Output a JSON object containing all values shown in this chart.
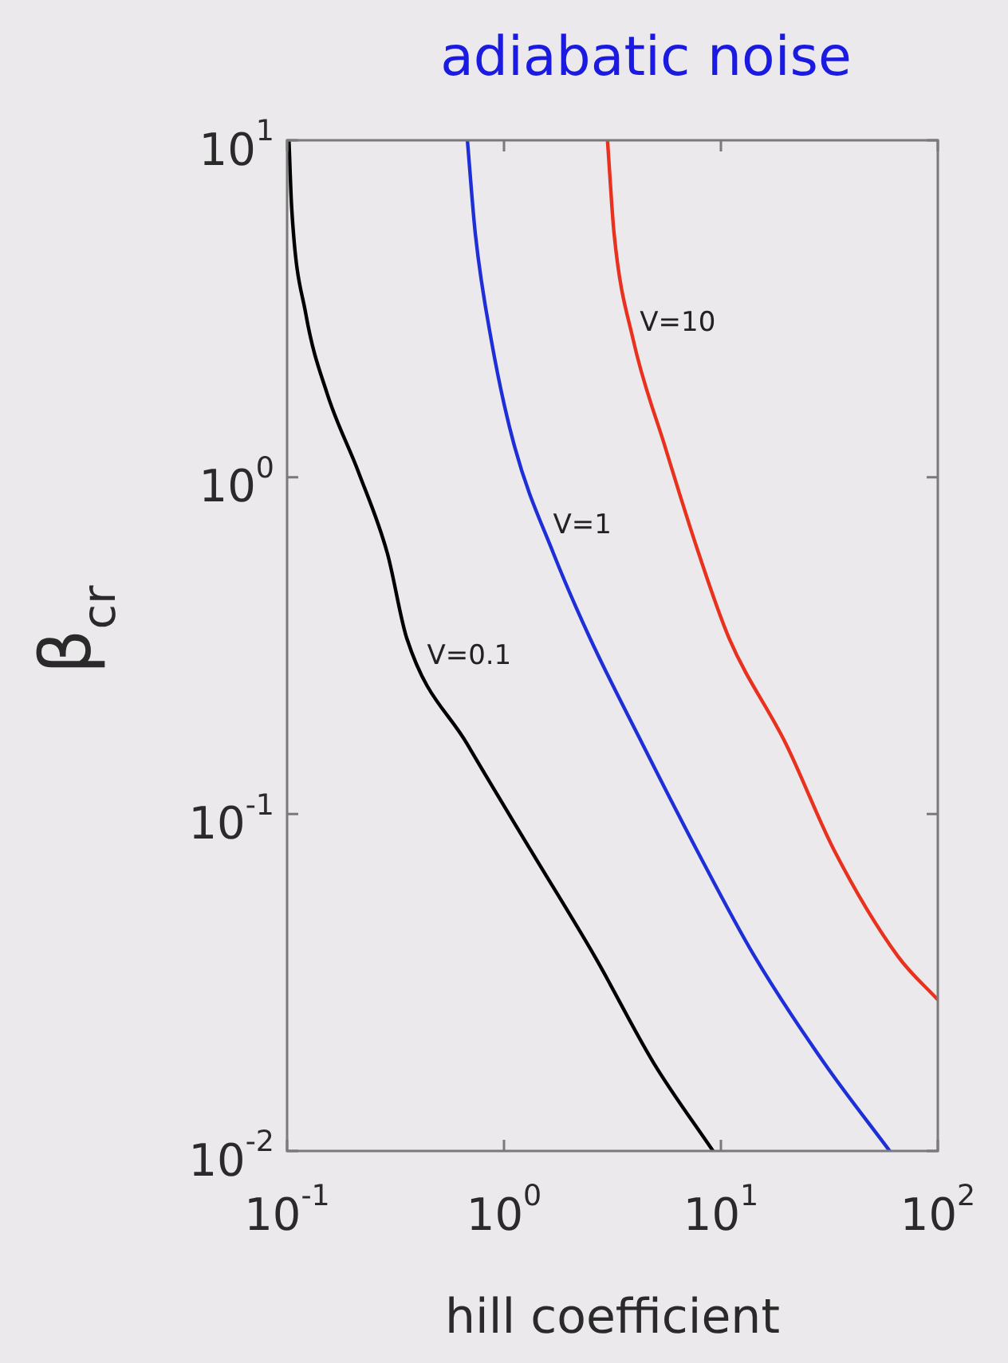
{
  "chart_data": {
    "type": "line",
    "title": "adiabatic noise",
    "xlabel": "hill coefficient",
    "ylabel": "β$_{cr}$",
    "log": "xy",
    "xlim": [
      0.1,
      100
    ],
    "ylim": [
      0.01,
      10
    ],
    "xticks": [
      {
        "value": 0.1,
        "label": "10$^{-1}$"
      },
      {
        "value": 1,
        "label": "10$^{0}$"
      },
      {
        "value": 10,
        "label": "10$^{1}$"
      },
      {
        "value": 100,
        "label": "10$^{2}$"
      }
    ],
    "yticks": [
      {
        "value": 0.01,
        "label": "10$^{-2}$"
      },
      {
        "value": 0.1,
        "label": "10$^{-1}$"
      },
      {
        "value": 1,
        "label": "10$^{0}$"
      },
      {
        "value": 10,
        "label": "10$^{1}$"
      }
    ],
    "grid": false,
    "legend": false,
    "marker": "none",
    "line_style": "solid",
    "series": [
      {
        "name": "V=0.1",
        "color": "#000000",
        "x": [
          0.102,
          0.105,
          0.122,
          0.153,
          0.214,
          0.29,
          0.356,
          0.678,
          1.33,
          2.62,
          4.91,
          9.2
        ],
        "values": [
          10,
          6.3,
          3.05,
          1.77,
          1.03,
          0.594,
          0.333,
          0.161,
          0.078,
          0.0378,
          0.0182,
          0.01
        ]
      },
      {
        "name": "V=1",
        "color": "#1f2fd8",
        "x": [
          0.678,
          0.738,
          0.873,
          1.12,
          1.69,
          2.49,
          4.36,
          7.76,
          14.3,
          30,
          60
        ],
        "values": [
          10,
          5.26,
          2.56,
          1.23,
          0.594,
          0.333,
          0.161,
          0.078,
          0.0378,
          0.0182,
          0.01
        ]
      },
      {
        "name": "V=10",
        "color": "#e8321f",
        "x": [
          3.0,
          3.22,
          3.94,
          5.53,
          7.9,
          10.9,
          20,
          33.3,
          65.5,
          100
        ],
        "values": [
          10,
          5.26,
          2.56,
          1.23,
          0.594,
          0.333,
          0.161,
          0.078,
          0.0378,
          0.0281
        ]
      }
    ]
  }
}
